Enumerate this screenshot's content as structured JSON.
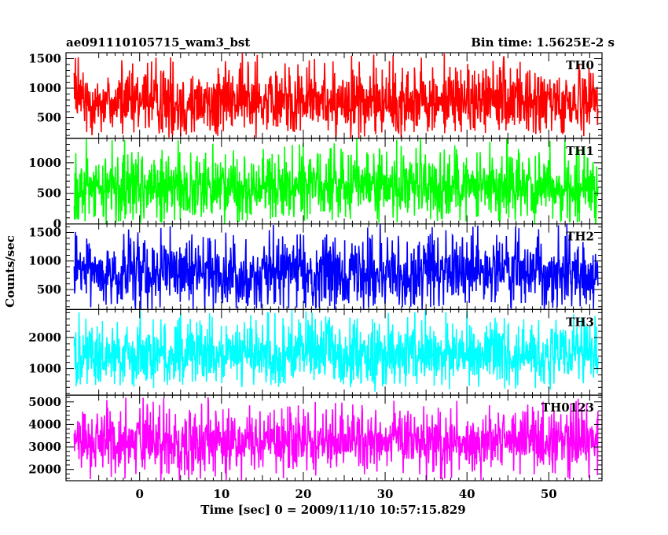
{
  "chart_data": {
    "type": "line",
    "title": "ae091110105715_wam3_bst",
    "subtitle": "Bin time: 1.5625E-2 s",
    "xlabel": "Time [sec] 0 = 2009/11/10 10:57:15.829",
    "ylabel": "Counts/sec",
    "xlim": [
      -9,
      56.5
    ],
    "x_ticks": [
      0,
      10,
      20,
      30,
      40,
      50
    ],
    "data_x_range": [
      -8,
      56
    ],
    "grid": false,
    "panels": [
      {
        "name": "TH0",
        "color": "#ff0000",
        "ylim": [
          150,
          1600
        ],
        "y_ticks": [
          500,
          1000,
          1500
        ],
        "typical_range": [
          300,
          1250
        ],
        "spike_max": 1600,
        "dip_min": 180,
        "mean": 700
      },
      {
        "name": "TH1",
        "color": "#00ff00",
        "ylim": [
          0,
          1400
        ],
        "y_ticks": [
          0,
          500,
          1000
        ],
        "typical_range": [
          150,
          1050
        ],
        "spike_max": 1400,
        "dip_min": 0,
        "mean": 550
      },
      {
        "name": "TH2",
        "color": "#0000ff",
        "ylim": [
          150,
          1650
        ],
        "y_ticks": [
          500,
          1000,
          1500
        ],
        "typical_range": [
          300,
          1300
        ],
        "spike_max": 1650,
        "dip_min": 150,
        "mean": 800
      },
      {
        "name": "TH3",
        "color": "#00ffff",
        "ylim": [
          150,
          2900
        ],
        "y_ticks": [
          1000,
          2000
        ],
        "typical_range": [
          600,
          2300
        ],
        "spike_max": 2900,
        "dip_min": 350,
        "mean": 1500
      },
      {
        "name": "TH0123",
        "color": "#ff00ff",
        "ylim": [
          1500,
          5300
        ],
        "y_ticks": [
          2000,
          3000,
          4000,
          5000
        ],
        "typical_range": [
          2100,
          4400
        ],
        "spike_max": 5200,
        "dip_min": 1500,
        "mean": 3200
      }
    ]
  }
}
